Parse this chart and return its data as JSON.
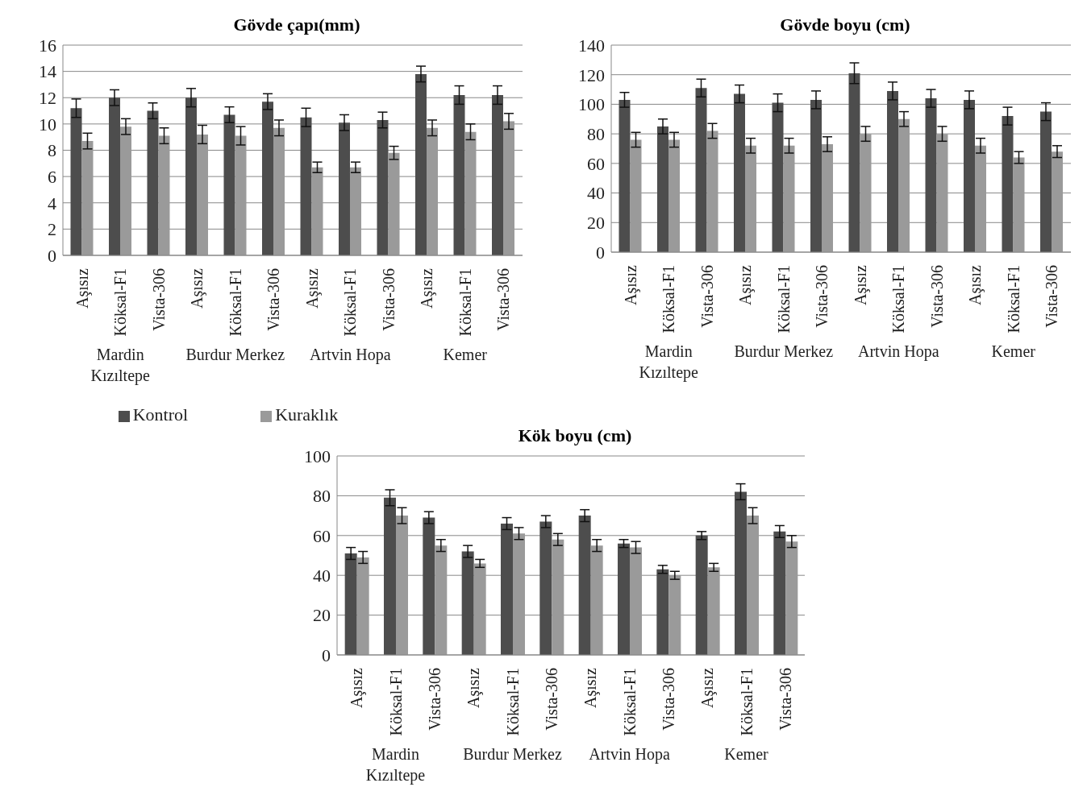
{
  "chart_data": [
    {
      "type": "bar",
      "title": "Gövde çapı(mm)",
      "categories": [
        "Aşısız",
        "Köksal-F1",
        "Vista-306",
        "Aşısız",
        "Köksal-F1",
        "Vista-306",
        "Aşısız",
        "Köksal-F1",
        "Vista-306",
        "Aşısız",
        "Köksal-F1",
        "Vista-306"
      ],
      "annotations": [
        "Mardin Kızıltepe",
        "Burdur Merkez",
        "Artvin Hopa",
        "Kemer"
      ],
      "series": [
        {
          "name": "Kontrol",
          "color": "#4d4d4d",
          "values": [
            11.2,
            12.0,
            11.0,
            12.0,
            10.7,
            11.7,
            10.5,
            10.1,
            10.3,
            13.8,
            12.2,
            12.2
          ],
          "errors": [
            0.7,
            0.6,
            0.6,
            0.7,
            0.6,
            0.6,
            0.7,
            0.6,
            0.6,
            0.6,
            0.7,
            0.7
          ]
        },
        {
          "name": "Kuraklık",
          "color": "#9a9a9a",
          "values": [
            8.7,
            9.8,
            9.1,
            9.2,
            9.1,
            9.7,
            6.7,
            6.7,
            7.8,
            9.7,
            9.4,
            10.2
          ],
          "errors": [
            0.6,
            0.6,
            0.6,
            0.7,
            0.7,
            0.6,
            0.4,
            0.4,
            0.5,
            0.6,
            0.6,
            0.6
          ]
        }
      ],
      "ylim": [
        0,
        16
      ],
      "yticks": [
        0,
        2,
        4,
        6,
        8,
        10,
        12,
        14,
        16
      ],
      "grid": "y",
      "legend": "bottom"
    },
    {
      "type": "bar",
      "title": "Gövde boyu (cm)",
      "categories": [
        "Aşısız",
        "Köksal-F1",
        "Vista-306",
        "Aşısız",
        "Köksal-F1",
        "Vista-306",
        "Aşısız",
        "Köksal-F1",
        "Vista-306",
        "Aşısız",
        "Köksal-F1",
        "Vista-306"
      ],
      "annotations": [
        "Mardin Kızıltepe",
        "Burdur Merkez",
        "Artvin Hopa",
        "Kemer"
      ],
      "series": [
        {
          "color": "#4d4d4d",
          "values": [
            103,
            85,
            111,
            107,
            101,
            103,
            121,
            109,
            104,
            103,
            92,
            95
          ],
          "errors": [
            5,
            5,
            6,
            6,
            6,
            6,
            7,
            6,
            6,
            6,
            6,
            6
          ]
        },
        {
          "color": "#9a9a9a",
          "values": [
            76,
            76,
            82,
            72,
            72,
            73,
            80,
            90,
            80,
            72,
            64,
            68
          ],
          "errors": [
            5,
            5,
            5,
            5,
            5,
            5,
            5,
            5,
            5,
            5,
            4,
            4
          ]
        }
      ],
      "ylim": [
        0,
        140
      ],
      "yticks": [
        0,
        20,
        40,
        60,
        80,
        100,
        120,
        140
      ],
      "grid": "y",
      "legend": false
    },
    {
      "type": "bar",
      "title": "Kök boyu (cm)",
      "categories": [
        "Aşısız",
        "Köksal-F1",
        "Vista-306",
        "Aşısız",
        "Köksal-F1",
        "Vista-306",
        "Aşısız",
        "Köksal-F1",
        "Vista-306",
        "Aşısız",
        "Köksal-F1",
        "Vista-306"
      ],
      "annotations": [
        "Mardin Kızıltepe",
        "Burdur Merkez",
        "Artvin Hopa",
        "Kemer"
      ],
      "series": [
        {
          "color": "#4d4d4d",
          "values": [
            51,
            79,
            69,
            52,
            66,
            67,
            70,
            56,
            43,
            60,
            82,
            62
          ],
          "errors": [
            3,
            4,
            3,
            3,
            3,
            3,
            3,
            2,
            2,
            2,
            4,
            3
          ]
        },
        {
          "color": "#9a9a9a",
          "values": [
            49,
            70,
            55,
            46,
            61,
            58,
            55,
            54,
            40,
            44,
            70,
            57
          ],
          "errors": [
            3,
            4,
            3,
            2,
            3,
            3,
            3,
            3,
            2,
            2,
            4,
            3
          ]
        }
      ],
      "ylim": [
        0,
        100
      ],
      "yticks": [
        0,
        20,
        40,
        60,
        80,
        100
      ],
      "grid": "y",
      "legend": false
    }
  ]
}
